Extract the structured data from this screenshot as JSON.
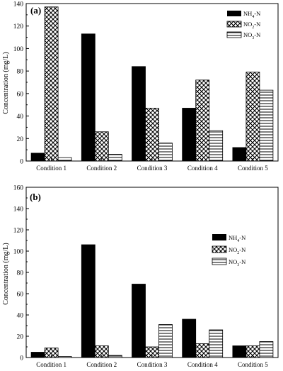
{
  "figure": {
    "panels": [
      {
        "label": "(a)",
        "ylabel": "Concentration (mg/L)",
        "legend": [
          {
            "base": "NH",
            "sub": "4",
            "suffix": "-N"
          },
          {
            "base": "NO",
            "sub": "2",
            "suffix": "-N"
          },
          {
            "base": "NO",
            "sub": "3",
            "suffix": "-N"
          }
        ]
      },
      {
        "label": "(b)",
        "ylabel": "Concentration (mg/L)",
        "legend": [
          {
            "base": "NH",
            "sub": "4",
            "suffix": "-N"
          },
          {
            "base": "NO",
            "sub": "2",
            "suffix": "-N"
          },
          {
            "base": "NO",
            "sub": "3",
            "suffix": "-N"
          }
        ]
      }
    ]
  },
  "chart_data": [
    {
      "type": "bar",
      "panel": "(a)",
      "categories": [
        "Condition 1",
        "Condition 2",
        "Condition 3",
        "Condition 4",
        "Condition 5"
      ],
      "series": [
        {
          "name": "NH4-N",
          "pattern": "solid-black",
          "values": [
            7,
            113,
            84,
            47,
            12
          ]
        },
        {
          "name": "NO2-N",
          "pattern": "crosshatch",
          "values": [
            137,
            26,
            47,
            72,
            79
          ]
        },
        {
          "name": "NO3-N",
          "pattern": "horizontal-lines",
          "values": [
            3,
            6,
            16,
            27,
            63
          ]
        }
      ],
      "ylabel": "Concentration (mg/L)",
      "ylim": [
        0,
        140
      ],
      "yticks": [
        0,
        20,
        40,
        60,
        80,
        100,
        120,
        140
      ],
      "legend_position": "top-right",
      "grid": false
    },
    {
      "type": "bar",
      "panel": "(b)",
      "categories": [
        "Condition 1",
        "Condition 2",
        "Condition 3",
        "Condition 4",
        "Condition 5"
      ],
      "series": [
        {
          "name": "NH4-N",
          "pattern": "solid-black",
          "values": [
            5,
            106,
            69,
            36,
            11
          ]
        },
        {
          "name": "NO2-N",
          "pattern": "crosshatch",
          "values": [
            9,
            11,
            10,
            13,
            11
          ]
        },
        {
          "name": "NO3-N",
          "pattern": "horizontal-lines",
          "values": [
            1,
            2,
            31,
            26,
            15
          ]
        }
      ],
      "ylabel": "Concentration (mg/L)",
      "ylim": [
        0,
        160
      ],
      "yticks": [
        0,
        20,
        40,
        60,
        80,
        100,
        120,
        140,
        160
      ],
      "legend_position": "center-right",
      "grid": false
    }
  ]
}
